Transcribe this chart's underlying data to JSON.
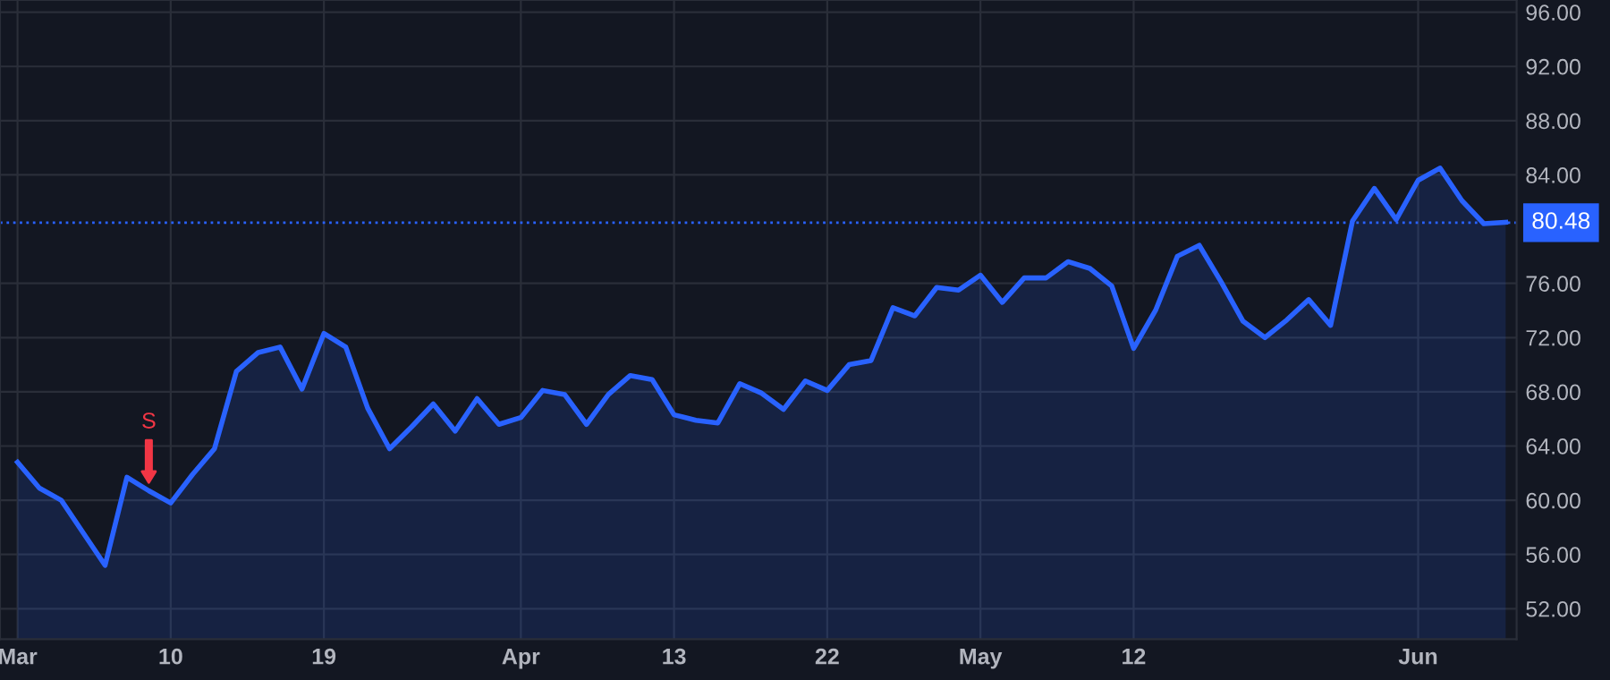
{
  "chart_data": {
    "type": "area",
    "categories": [
      "Mar",
      null,
      null,
      null,
      null,
      null,
      null,
      "10",
      null,
      null,
      null,
      null,
      null,
      null,
      "19",
      null,
      null,
      null,
      null,
      null,
      null,
      null,
      null,
      "Apr",
      null,
      null,
      null,
      null,
      null,
      null,
      "13",
      null,
      null,
      null,
      null,
      null,
      null,
      "22",
      null,
      null,
      null,
      null,
      null,
      null,
      "May",
      null,
      null,
      null,
      null,
      null,
      null,
      "12",
      null,
      null,
      null,
      null,
      null,
      null,
      null,
      null,
      null,
      null,
      null,
      null,
      "Jun",
      null,
      null,
      null,
      null
    ],
    "series": [
      {
        "color": "#2962ff",
        "values": [
          62.8,
          60.9,
          60.0,
          57.6,
          55.2,
          61.7,
          60.7,
          59.8,
          61.9,
          63.8,
          69.5,
          70.9,
          71.3,
          68.2,
          72.3,
          71.3,
          66.8,
          63.8,
          65.4,
          67.1,
          65.1,
          67.5,
          65.6,
          66.1,
          68.1,
          67.8,
          65.6,
          67.8,
          69.2,
          68.9,
          66.3,
          65.9,
          65.7,
          68.6,
          67.9,
          66.7,
          68.8,
          68.1,
          70.0,
          70.3,
          74.2,
          73.6,
          75.7,
          75.5,
          76.6,
          74.6,
          76.4,
          76.4,
          77.6,
          77.1,
          75.8,
          71.2,
          74.0,
          78.0,
          78.8,
          76.1,
          73.2,
          72.0,
          73.3,
          74.8,
          72.9,
          80.6,
          83.0,
          80.7,
          83.6,
          84.5,
          82.1,
          80.4,
          80.5
        ]
      }
    ],
    "ylim": [
      49.75,
      96.9
    ],
    "yticks": [
      {
        "value": 52,
        "label": "52.00"
      },
      {
        "value": 56,
        "label": "56.00"
      },
      {
        "value": 60,
        "label": "60.00"
      },
      {
        "value": 64,
        "label": "64.00"
      },
      {
        "value": 68,
        "label": "68.00"
      },
      {
        "value": 72,
        "label": "72.00"
      },
      {
        "value": 76,
        "label": "76.00"
      },
      {
        "value": 84,
        "label": "84.00"
      },
      {
        "value": 88,
        "label": "88.00"
      },
      {
        "value": 92,
        "label": "92.00"
      },
      {
        "value": 96,
        "label": "96.00"
      }
    ],
    "ref_lines": [
      {
        "axis": "y",
        "value": 80.48,
        "label": "80.48",
        "color": "#2962ff",
        "line_style": "dotted"
      }
    ],
    "annotations": [
      {
        "text": "S",
        "y": 60.7
      }
    ],
    "grid": true,
    "legend": false
  }
}
